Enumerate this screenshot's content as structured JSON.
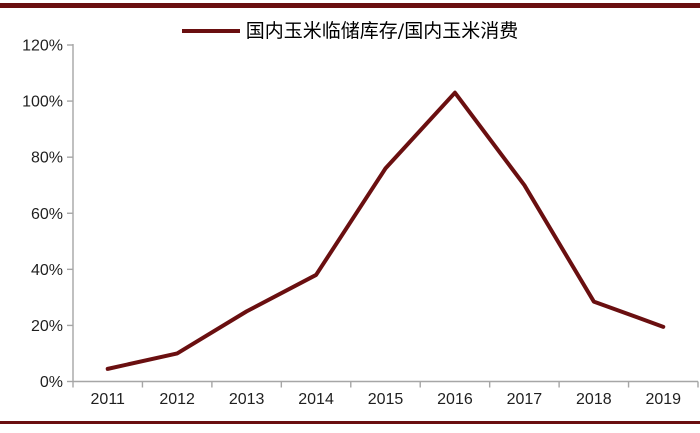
{
  "page": {
    "background": "#ffffff",
    "accent_color": "#6a0f10"
  },
  "legend": {
    "label": "国内玉米临储库存/国内玉米消费"
  },
  "chart_data": {
    "type": "line",
    "title": "国内玉米临储库存/国内玉米消费",
    "x": [
      "2011",
      "2012",
      "2013",
      "2014",
      "2015",
      "2016",
      "2017",
      "2018",
      "2019"
    ],
    "series": [
      {
        "name": "国内玉米临储库存/国内玉米消费",
        "values": [
          4.5,
          10,
          25,
          38,
          76,
          103,
          70,
          28.5,
          19.5
        ],
        "color": "#6a0f10"
      }
    ],
    "xlabel": "",
    "ylabel": "",
    "ylim": [
      0,
      120
    ],
    "ytick_step": 20,
    "ytick_labels": [
      "0%",
      "20%",
      "40%",
      "60%",
      "80%",
      "100%",
      "120%"
    ],
    "grid": false,
    "legend_position": "top-center",
    "axis_color": "#a6a6a6",
    "tick_label_color": "#1f1f1f"
  }
}
